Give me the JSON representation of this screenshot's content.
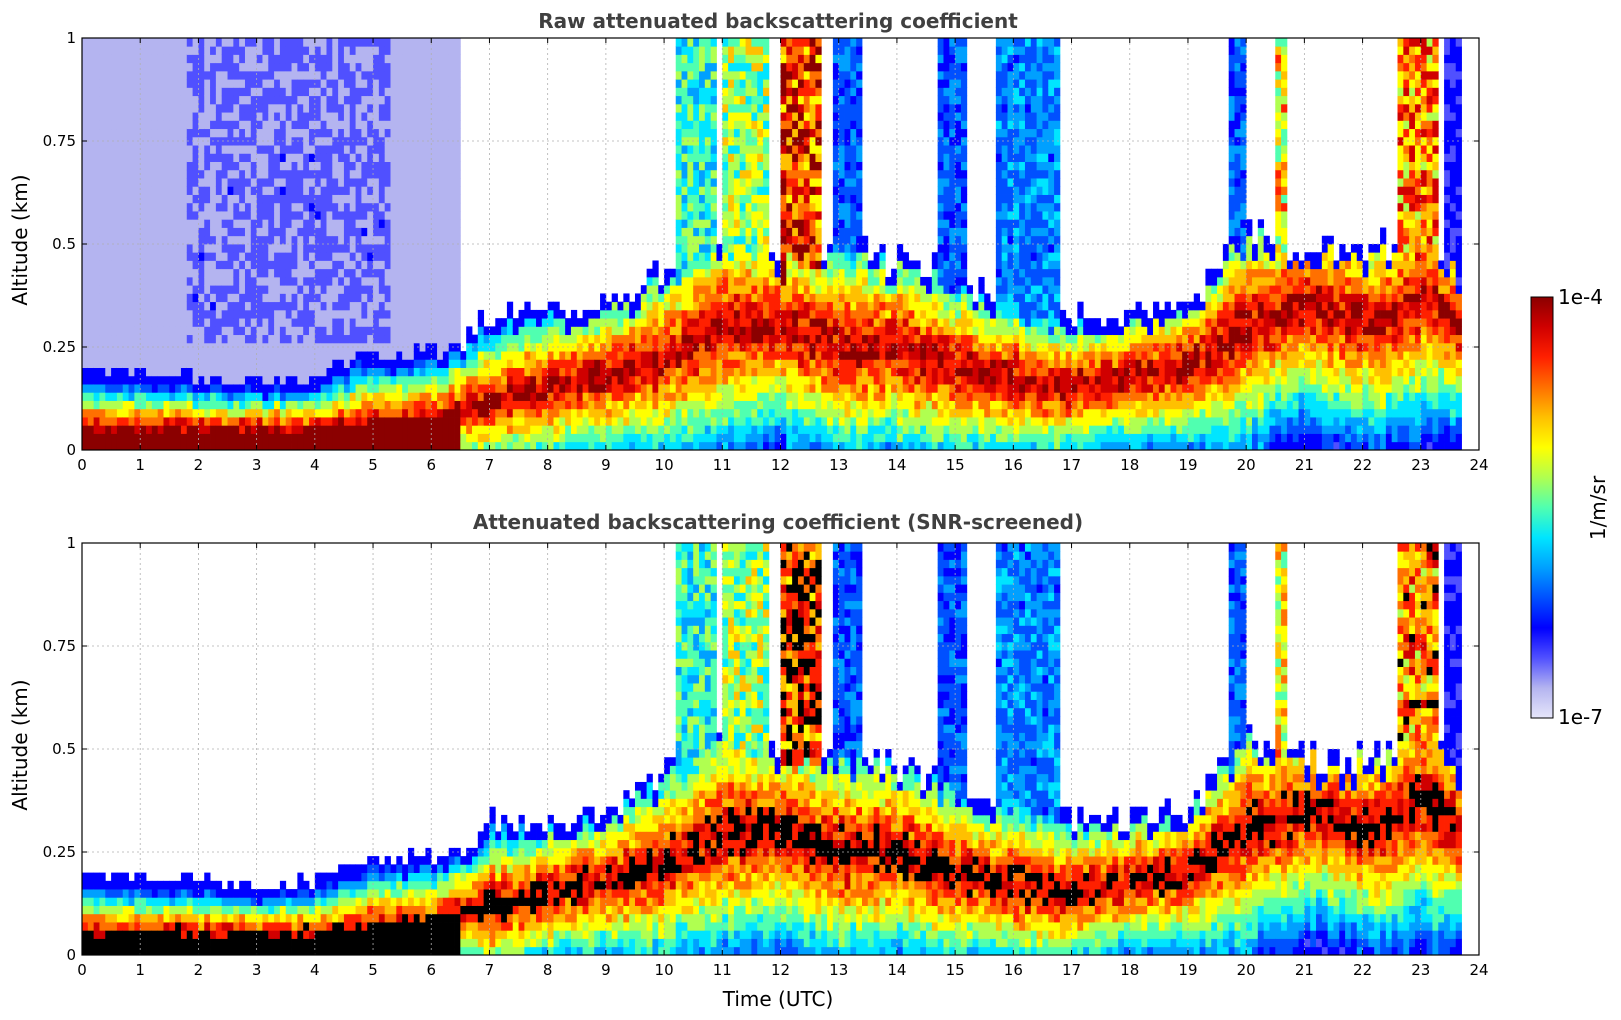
{
  "chart_data": [
    {
      "type": "heatmap",
      "title": "Raw attenuated backscattering coefficient",
      "xlabel": "",
      "ylabel": "Altitude (km)",
      "xlim": [
        0,
        24
      ],
      "ylim": [
        0,
        1
      ],
      "xticks": [
        "0",
        "1",
        "2",
        "3",
        "4",
        "5",
        "6",
        "7",
        "8",
        "9",
        "10",
        "11",
        "12",
        "13",
        "14",
        "15",
        "16",
        "17",
        "18",
        "19",
        "20",
        "21",
        "22",
        "23",
        "24"
      ],
      "yticks": [
        "0",
        "0.25",
        "0.5",
        "0.75",
        "1"
      ],
      "ytick_values": [
        0,
        0.25,
        0.5,
        0.75,
        1
      ],
      "grid": true,
      "screened": false
    },
    {
      "type": "heatmap",
      "title": "Attenuated backscattering coefficient (SNR-screened)",
      "xlabel": "Time (UTC)",
      "ylabel": "Altitude (km)",
      "xlim": [
        0,
        24
      ],
      "ylim": [
        0,
        1
      ],
      "xticks": [
        "0",
        "1",
        "2",
        "3",
        "4",
        "5",
        "6",
        "7",
        "8",
        "9",
        "10",
        "11",
        "12",
        "13",
        "14",
        "15",
        "16",
        "17",
        "18",
        "19",
        "20",
        "21",
        "22",
        "23",
        "24"
      ],
      "yticks": [
        "0",
        "0.25",
        "0.5",
        "0.75",
        "1"
      ],
      "ytick_values": [
        0,
        0.25,
        0.5,
        0.75,
        1
      ],
      "grid": true,
      "screened": true
    }
  ],
  "colorbar": {
    "label": "1/m/sr",
    "min_label": "1e-7",
    "max_label": "1e-4",
    "colors": [
      "#e6e6fa",
      "#b4b4f0",
      "#5050ff",
      "#0000ff",
      "#0050ff",
      "#00a0ff",
      "#00e5ff",
      "#50ffb0",
      "#b0ff50",
      "#ffff00",
      "#ffc000",
      "#ff7000",
      "#ff2000",
      "#d00000",
      "#8b0000"
    ]
  },
  "profile": {
    "layer_top_knots": [
      [
        0,
        0.17
      ],
      [
        1,
        0.16
      ],
      [
        2,
        0.15
      ],
      [
        3,
        0.14
      ],
      [
        4,
        0.15
      ],
      [
        4.6,
        0.2
      ],
      [
        5.5,
        0.2
      ],
      [
        6.5,
        0.22
      ],
      [
        7,
        0.3
      ],
      [
        8,
        0.3
      ],
      [
        9,
        0.32
      ],
      [
        10,
        0.4
      ],
      [
        11,
        0.5
      ],
      [
        12,
        0.45
      ],
      [
        13,
        0.45
      ],
      [
        14,
        0.43
      ],
      [
        15,
        0.4
      ],
      [
        15.7,
        0.35
      ],
      [
        17,
        0.3
      ],
      [
        18,
        0.3
      ],
      [
        19,
        0.32
      ],
      [
        20,
        0.5
      ],
      [
        21,
        0.45
      ],
      [
        22.3,
        0.45
      ],
      [
        23,
        0.55
      ],
      [
        23.7,
        0.4
      ]
    ],
    "peak_knots": [
      [
        0,
        0.05
      ],
      [
        2,
        0.05
      ],
      [
        4,
        0.05
      ],
      [
        5,
        0.07
      ],
      [
        6,
        0.08
      ],
      [
        7,
        0.12
      ],
      [
        8,
        0.15
      ],
      [
        9,
        0.18
      ],
      [
        10,
        0.22
      ],
      [
        11,
        0.3
      ],
      [
        12,
        0.3
      ],
      [
        13,
        0.25
      ],
      [
        14,
        0.25
      ],
      [
        15,
        0.2
      ],
      [
        15.7,
        0.18
      ],
      [
        17,
        0.15
      ],
      [
        18,
        0.18
      ],
      [
        19,
        0.2
      ],
      [
        20,
        0.3
      ],
      [
        21,
        0.35
      ],
      [
        22.3,
        0.3
      ],
      [
        23,
        0.38
      ],
      [
        23.7,
        0.3
      ]
    ],
    "cloud_columns": [
      [
        10.2,
        10.9,
        10,
        6
      ],
      [
        11.0,
        11.8,
        12,
        5
      ],
      [
        12.0,
        12.7,
        18,
        5
      ],
      [
        12.9,
        13.4,
        6,
        5
      ],
      [
        14.7,
        15.2,
        6,
        4
      ],
      [
        15.7,
        16.8,
        7,
        4
      ],
      [
        19.7,
        20.0,
        6,
        3
      ],
      [
        20.5,
        20.7,
        14,
        3
      ],
      [
        22.6,
        23.3,
        16,
        5
      ],
      [
        23.4,
        23.7,
        4,
        3
      ]
    ],
    "data_end_hour": 23.7
  }
}
